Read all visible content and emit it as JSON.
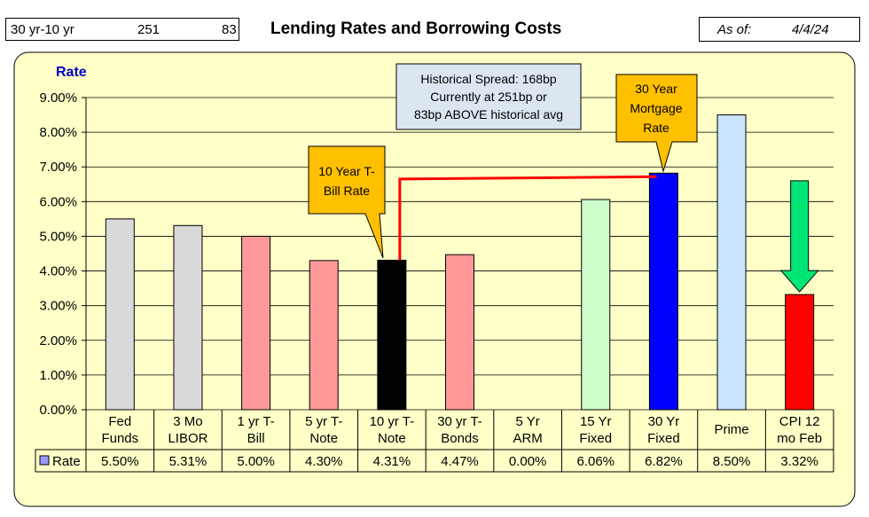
{
  "header": {
    "spread_label": "30 yr-10 yr",
    "spread_bp": "251",
    "spread_vs_avg": "83",
    "title": "Lending Rates and Borrowing Costs",
    "as_of_label": "As of:",
    "as_of_date": "4/4/24"
  },
  "colors": {
    "panel": "#FFFFC8",
    "gray": "#D9D9D9",
    "pink": "#FF9999",
    "black": "#000000",
    "green": "#CCFFCC",
    "blue": "#0000FF",
    "lightblue": "#CCE5FF",
    "red": "#FF0000",
    "callout": "#FFC000",
    "spread_line": "#FF0000"
  },
  "chart_data": {
    "type": "bar",
    "ylabel": "Rate",
    "ylim": [
      0,
      9
    ],
    "yticks": [
      "0.00%",
      "1.00%",
      "2.00%",
      "3.00%",
      "4.00%",
      "5.00%",
      "6.00%",
      "7.00%",
      "8.00%",
      "9.00%"
    ],
    "series_name": "Rate",
    "categories": [
      [
        "Fed",
        "Funds"
      ],
      [
        "3 Mo",
        "LIBOR"
      ],
      [
        "1 yr  T-",
        "Bill"
      ],
      [
        "5 yr T-",
        "Note"
      ],
      [
        "10 yr T-",
        "Note"
      ],
      [
        "30 yr T-",
        "Bonds"
      ],
      [
        "5 Yr",
        "ARM"
      ],
      [
        "15 Yr",
        "Fixed"
      ],
      [
        "30 Yr",
        "Fixed"
      ],
      [
        "Prime",
        ""
      ],
      [
        "CPI 12",
        "mo Feb"
      ]
    ],
    "values": [
      5.5,
      5.31,
      5.0,
      4.3,
      4.31,
      4.47,
      0.0,
      6.06,
      6.82,
      8.5,
      3.32
    ],
    "value_labels": [
      "5.50%",
      "5.31%",
      "5.00%",
      "4.30%",
      "4.31%",
      "4.47%",
      "0.00%",
      "6.06%",
      "6.82%",
      "8.50%",
      "3.32%"
    ],
    "bar_colors": [
      "gray",
      "gray",
      "pink",
      "pink",
      "black",
      "pink",
      "gray",
      "green",
      "blue",
      "lightblue",
      "red"
    ],
    "annotations": {
      "spread_box": [
        "Historical Spread: 168bp",
        "Currently at 251bp  or",
        "83bp ABOVE historical avg"
      ],
      "ten_year_callout": [
        "10 Year T-",
        "Bill Rate"
      ],
      "thirty_year_callout": [
        "30 Year",
        "Mortgage",
        "Rate"
      ]
    },
    "cpi_arrow": {
      "from": 6.6,
      "to": 3.32
    },
    "spread_line": {
      "from_category": 4,
      "to_category": 8,
      "level": 6.65
    }
  }
}
